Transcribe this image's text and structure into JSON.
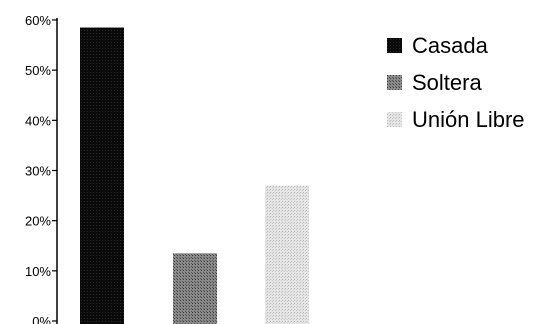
{
  "chart_data": {
    "type": "bar",
    "categories": [
      "Casada",
      "Soltera",
      "Unión Libre"
    ],
    "values": [
      58.5,
      13.5,
      27
    ],
    "y_tick_labels": [
      "0%",
      "10%",
      "20%",
      "30%",
      "40%",
      "50%",
      "60%"
    ],
    "ylim": [
      0,
      60
    ],
    "grid": false,
    "legend_placement": "right",
    "legend_entries": [
      "Casada",
      "Soltera",
      "Unión Libre"
    ],
    "colors": [
      "#050505",
      "#6e6e6e",
      "#cfcfcf"
    ]
  }
}
